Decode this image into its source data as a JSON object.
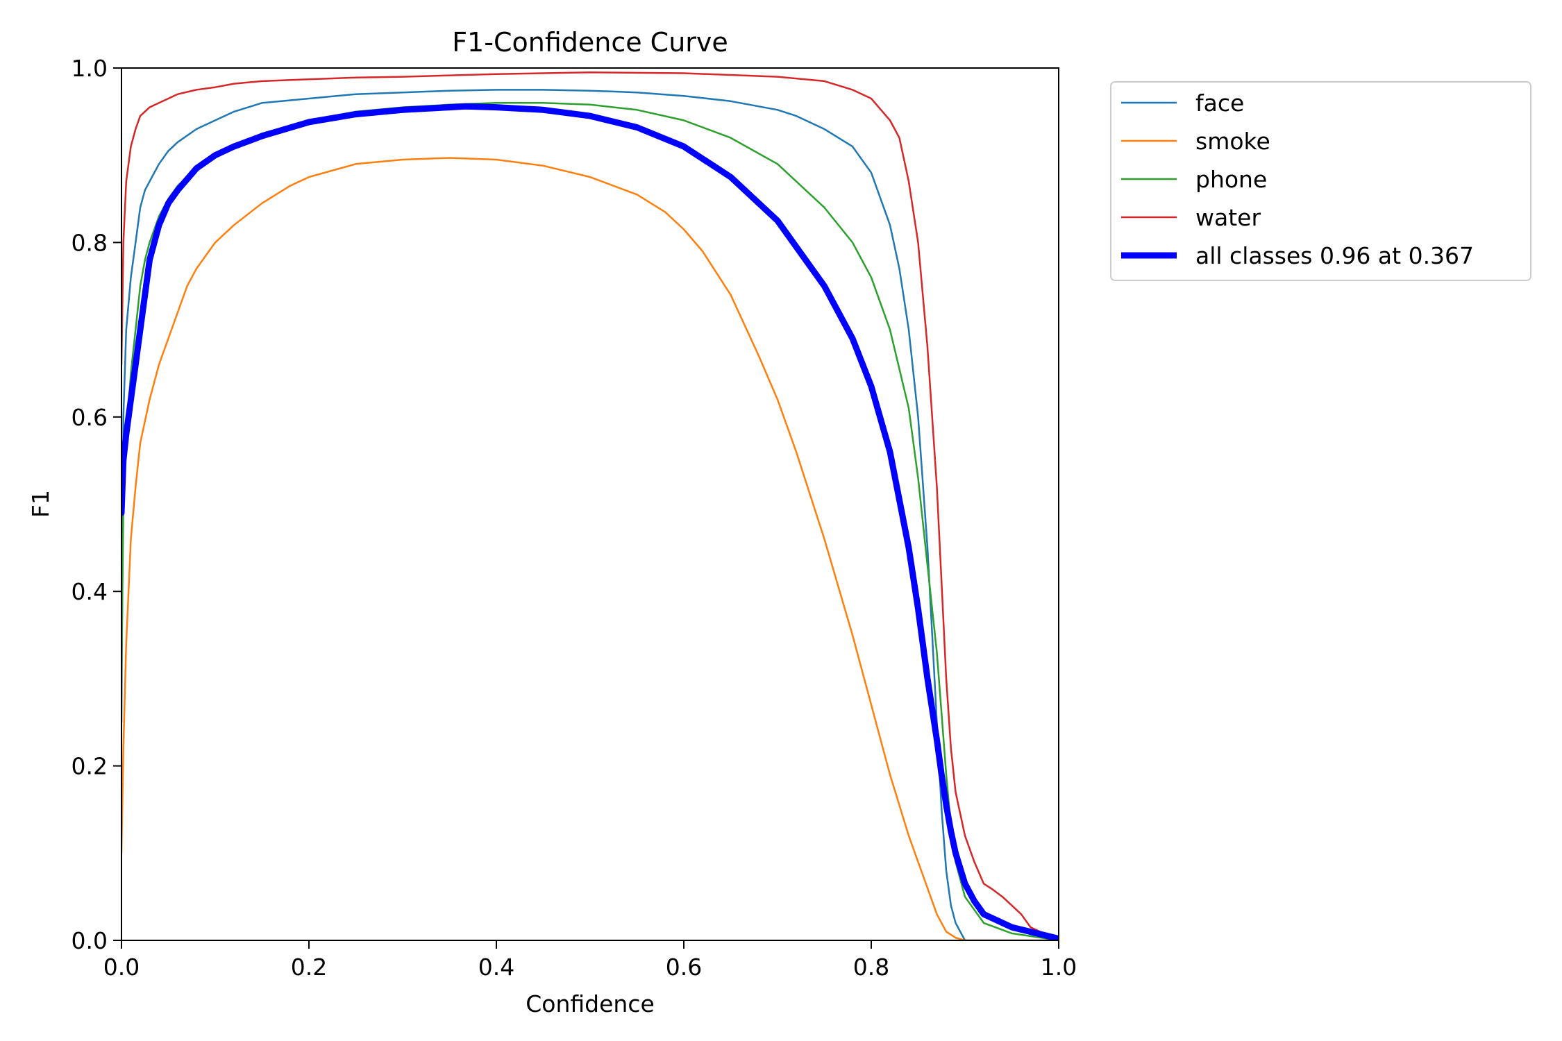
{
  "chart_data": {
    "type": "line",
    "title": "F1-Confidence Curve",
    "xlabel": "Confidence",
    "ylabel": "F1",
    "xlim": [
      0.0,
      1.0
    ],
    "ylim": [
      0.0,
      1.0
    ],
    "xticks": [
      "0.0",
      "0.2",
      "0.4",
      "0.6",
      "0.8",
      "1.0"
    ],
    "yticks": [
      "0.0",
      "0.2",
      "0.4",
      "0.6",
      "0.8",
      "1.0"
    ],
    "grid": false,
    "legend_position": "outside-top-right",
    "series": [
      {
        "name": "face",
        "color": "#1f77b4",
        "thick": false,
        "x": [
          0,
          0.002,
          0.005,
          0.01,
          0.015,
          0.02,
          0.025,
          0.03,
          0.04,
          0.05,
          0.06,
          0.08,
          0.1,
          0.12,
          0.15,
          0.2,
          0.25,
          0.3,
          0.35,
          0.4,
          0.45,
          0.5,
          0.55,
          0.6,
          0.65,
          0.7,
          0.72,
          0.75,
          0.78,
          0.8,
          0.82,
          0.83,
          0.84,
          0.85,
          0.86,
          0.865,
          0.87,
          0.875,
          0.88,
          0.885,
          0.89,
          0.9,
          1.0
        ],
        "y": [
          0.25,
          0.6,
          0.7,
          0.76,
          0.8,
          0.84,
          0.86,
          0.87,
          0.89,
          0.905,
          0.915,
          0.93,
          0.94,
          0.95,
          0.96,
          0.965,
          0.97,
          0.972,
          0.974,
          0.975,
          0.975,
          0.974,
          0.972,
          0.968,
          0.962,
          0.952,
          0.945,
          0.93,
          0.91,
          0.88,
          0.82,
          0.77,
          0.7,
          0.6,
          0.45,
          0.35,
          0.25,
          0.15,
          0.08,
          0.04,
          0.02,
          0.0,
          0.0
        ]
      },
      {
        "name": "smoke",
        "color": "#ff7f0e",
        "thick": false,
        "x": [
          0,
          0.002,
          0.005,
          0.01,
          0.015,
          0.02,
          0.03,
          0.04,
          0.05,
          0.06,
          0.07,
          0.08,
          0.1,
          0.12,
          0.15,
          0.18,
          0.2,
          0.25,
          0.3,
          0.35,
          0.4,
          0.45,
          0.5,
          0.55,
          0.58,
          0.6,
          0.62,
          0.65,
          0.68,
          0.7,
          0.72,
          0.75,
          0.78,
          0.8,
          0.82,
          0.84,
          0.86,
          0.87,
          0.88,
          0.89,
          0.9,
          1.0
        ],
        "y": [
          0.1,
          0.22,
          0.34,
          0.46,
          0.52,
          0.57,
          0.62,
          0.66,
          0.69,
          0.72,
          0.75,
          0.77,
          0.8,
          0.82,
          0.845,
          0.865,
          0.875,
          0.89,
          0.895,
          0.897,
          0.895,
          0.888,
          0.875,
          0.855,
          0.835,
          0.815,
          0.79,
          0.74,
          0.67,
          0.62,
          0.56,
          0.46,
          0.35,
          0.27,
          0.19,
          0.12,
          0.06,
          0.03,
          0.01,
          0.003,
          0.0,
          0.0
        ]
      },
      {
        "name": "phone",
        "color": "#2ca02c",
        "thick": false,
        "x": [
          0,
          0.002,
          0.005,
          0.01,
          0.015,
          0.02,
          0.025,
          0.03,
          0.04,
          0.05,
          0.06,
          0.08,
          0.1,
          0.12,
          0.15,
          0.2,
          0.25,
          0.3,
          0.35,
          0.4,
          0.45,
          0.5,
          0.55,
          0.6,
          0.65,
          0.7,
          0.75,
          0.78,
          0.8,
          0.82,
          0.84,
          0.85,
          0.86,
          0.87,
          0.875,
          0.88,
          0.885,
          0.89,
          0.9,
          0.92,
          0.95,
          1.0
        ],
        "y": [
          0.3,
          0.5,
          0.58,
          0.65,
          0.7,
          0.75,
          0.78,
          0.8,
          0.83,
          0.85,
          0.865,
          0.885,
          0.9,
          0.91,
          0.925,
          0.94,
          0.95,
          0.955,
          0.958,
          0.96,
          0.96,
          0.958,
          0.952,
          0.94,
          0.92,
          0.89,
          0.84,
          0.8,
          0.76,
          0.7,
          0.61,
          0.53,
          0.43,
          0.33,
          0.26,
          0.19,
          0.13,
          0.09,
          0.05,
          0.02,
          0.008,
          0.0
        ]
      },
      {
        "name": "water",
        "color": "#d62728",
        "thick": false,
        "x": [
          0,
          0.002,
          0.005,
          0.01,
          0.015,
          0.02,
          0.03,
          0.04,
          0.05,
          0.06,
          0.08,
          0.1,
          0.12,
          0.15,
          0.2,
          0.25,
          0.3,
          0.4,
          0.5,
          0.6,
          0.7,
          0.75,
          0.78,
          0.8,
          0.82,
          0.83,
          0.84,
          0.85,
          0.86,
          0.87,
          0.875,
          0.88,
          0.885,
          0.89,
          0.9,
          0.91,
          0.92,
          0.93,
          0.94,
          0.95,
          0.96,
          0.97,
          0.98,
          1.0
        ],
        "y": [
          0.66,
          0.8,
          0.87,
          0.91,
          0.93,
          0.945,
          0.955,
          0.96,
          0.965,
          0.97,
          0.975,
          0.978,
          0.982,
          0.985,
          0.987,
          0.989,
          0.99,
          0.993,
          0.995,
          0.994,
          0.99,
          0.985,
          0.975,
          0.965,
          0.94,
          0.92,
          0.87,
          0.8,
          0.68,
          0.52,
          0.41,
          0.3,
          0.22,
          0.17,
          0.12,
          0.09,
          0.065,
          0.058,
          0.05,
          0.04,
          0.03,
          0.015,
          0.01,
          0.0
        ]
      },
      {
        "name": "all classes 0.96 at 0.367",
        "color": "#0000ff",
        "thick": true,
        "x": [
          0,
          0.002,
          0.005,
          0.01,
          0.015,
          0.02,
          0.025,
          0.03,
          0.04,
          0.05,
          0.06,
          0.08,
          0.1,
          0.12,
          0.15,
          0.2,
          0.25,
          0.3,
          0.35,
          0.367,
          0.4,
          0.45,
          0.5,
          0.55,
          0.6,
          0.65,
          0.7,
          0.75,
          0.78,
          0.8,
          0.82,
          0.84,
          0.85,
          0.86,
          0.87,
          0.875,
          0.88,
          0.885,
          0.89,
          0.9,
          0.91,
          0.92,
          0.95,
          1.0
        ],
        "y": [
          0.49,
          0.55,
          0.58,
          0.62,
          0.66,
          0.7,
          0.74,
          0.78,
          0.82,
          0.845,
          0.86,
          0.885,
          0.9,
          0.91,
          0.922,
          0.938,
          0.947,
          0.952,
          0.955,
          0.956,
          0.955,
          0.952,
          0.945,
          0.932,
          0.91,
          0.875,
          0.825,
          0.75,
          0.69,
          0.635,
          0.56,
          0.45,
          0.38,
          0.3,
          0.23,
          0.19,
          0.155,
          0.125,
          0.1,
          0.065,
          0.045,
          0.03,
          0.015,
          0.002
        ]
      }
    ]
  }
}
